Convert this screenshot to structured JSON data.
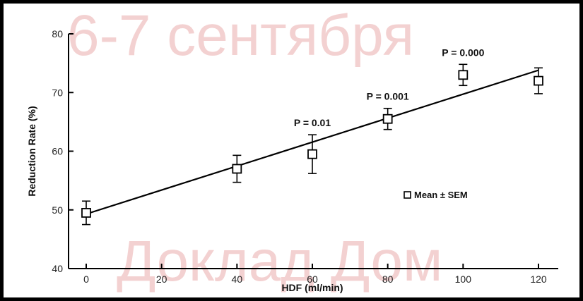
{
  "watermark": {
    "top": "6-7 сентября",
    "bottom": "Доклад Дом"
  },
  "chart_data": {
    "type": "scatter",
    "title": "",
    "xlabel": "HDF (ml/min)",
    "ylabel": "Reduction Rate (%)",
    "xlim": [
      0,
      120
    ],
    "ylim": [
      40,
      80
    ],
    "xticks": [
      "0",
      "20",
      "40",
      "60",
      "80",
      "100",
      "120"
    ],
    "yticks": [
      "40",
      "50",
      "60",
      "70",
      "80"
    ],
    "grid": false,
    "legend": {
      "label": "Mean ± SEM",
      "placement": "right"
    },
    "series": [
      {
        "name": "Mean ± SEM",
        "points": [
          {
            "x": 0,
            "y": 49.5,
            "sem": 2
          },
          {
            "x": 40,
            "y": 57,
            "sem": 2.3
          },
          {
            "x": 60,
            "y": 59.5,
            "sem": 3.3
          },
          {
            "x": 80,
            "y": 65.5,
            "sem": 1.8
          },
          {
            "x": 100,
            "y": 73,
            "sem": 1.8
          },
          {
            "x": 120,
            "y": 72,
            "sem": 2.2
          }
        ]
      }
    ],
    "regression_line": {
      "x": [
        0,
        120
      ],
      "y": [
        49.3,
        73.8
      ]
    },
    "annotations": [
      {
        "text": "P = 0.01",
        "x": 60
      },
      {
        "text": "P = 0.001",
        "x": 80
      },
      {
        "text": "P = 0.000",
        "x": 100
      }
    ]
  }
}
